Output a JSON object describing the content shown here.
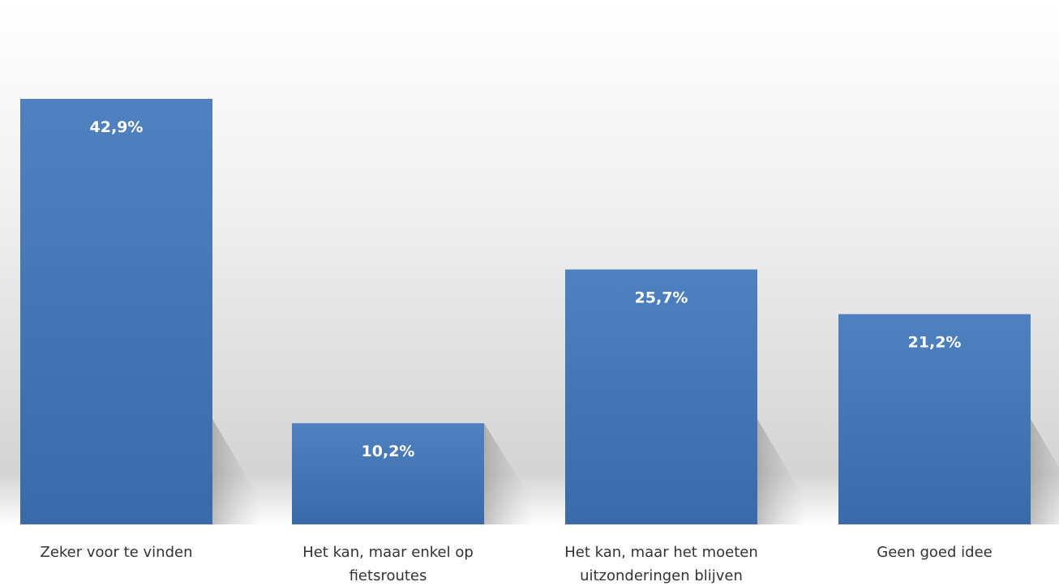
{
  "chart_data": {
    "type": "bar",
    "categories": [
      [
        "Zeker voor te vinden"
      ],
      [
        "Het kan, maar enkel op",
        "fietsroutes"
      ],
      [
        "Het kan, maar het moeten",
        "uitzonderingen blijven"
      ],
      [
        "Geen goed idee"
      ]
    ],
    "values": [
      42.9,
      10.2,
      25.7,
      21.2
    ],
    "value_labels": [
      "42,9%",
      "10,2%",
      "25,7%",
      "21,2%"
    ],
    "unit": "%",
    "ylim": [
      0,
      50
    ],
    "grid": false,
    "legend": "none",
    "colors": {
      "bar_top": "#4f81c0",
      "bar_bottom": "#3a6aa8",
      "bar_label": "#ffffff",
      "category_text": "#333333"
    }
  }
}
